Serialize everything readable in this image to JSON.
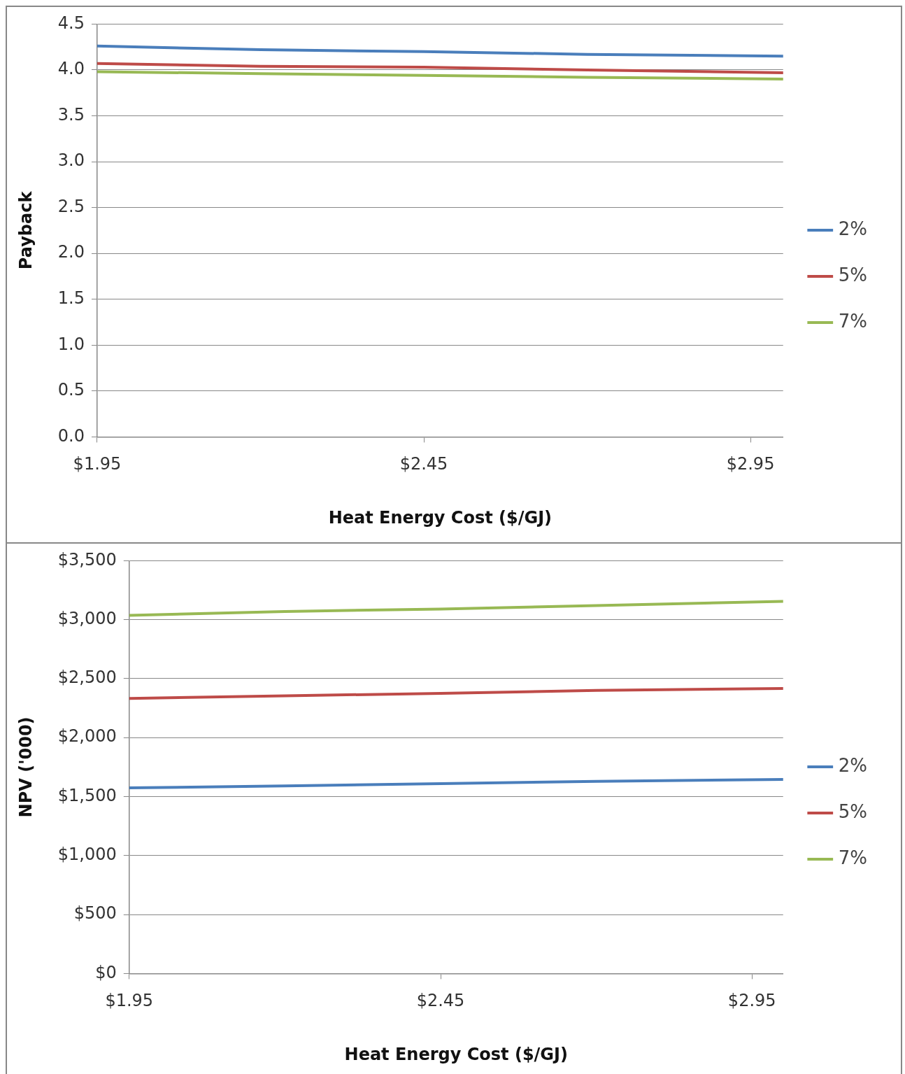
{
  "chart_data": [
    {
      "type": "line",
      "xlabel": "Heat Energy Cost ($/GJ)",
      "ylabel": "Payback",
      "x": [
        1.95,
        2.2,
        2.45,
        2.7,
        3.0
      ],
      "xlim": [
        1.95,
        3.0
      ],
      "xticks": [
        {
          "value": 1.95,
          "label": "$1.95"
        },
        {
          "value": 2.45,
          "label": "$2.45"
        },
        {
          "value": 2.95,
          "label": "$2.95"
        }
      ],
      "ylim": [
        0,
        4.5
      ],
      "yticks": [
        {
          "value": 0,
          "label": "0.0"
        },
        {
          "value": 0.5,
          "label": "0.5"
        },
        {
          "value": 1,
          "label": "1.0"
        },
        {
          "value": 1.5,
          "label": "1.5"
        },
        {
          "value": 2,
          "label": "2.0"
        },
        {
          "value": 2.5,
          "label": "2.5"
        },
        {
          "value": 3,
          "label": "3.0"
        },
        {
          "value": 3.5,
          "label": "3.5"
        },
        {
          "value": 4,
          "label": "4.0"
        },
        {
          "value": 4.5,
          "label": "4.5"
        }
      ],
      "grid": "y",
      "legend": "right",
      "marker": "none",
      "series": [
        {
          "name": "2%",
          "color": "#4a7ebb",
          "values": [
            4.26,
            4.22,
            4.2,
            4.17,
            4.15
          ]
        },
        {
          "name": "5%",
          "color": "#be4b48",
          "values": [
            4.07,
            4.04,
            4.03,
            4.0,
            3.97
          ]
        },
        {
          "name": "7%",
          "color": "#98b954",
          "values": [
            3.98,
            3.96,
            3.94,
            3.92,
            3.9
          ]
        }
      ]
    },
    {
      "type": "line",
      "xlabel": "Heat Energy Cost ($/GJ)",
      "ylabel": "NPV ('000)",
      "x": [
        1.95,
        2.2,
        2.45,
        2.7,
        3.0
      ],
      "xlim": [
        1.95,
        3.0
      ],
      "xticks": [
        {
          "value": 1.95,
          "label": "$1.95"
        },
        {
          "value": 2.45,
          "label": "$2.45"
        },
        {
          "value": 2.95,
          "label": "$2.95"
        }
      ],
      "ylim": [
        0,
        3500
      ],
      "yticks": [
        {
          "value": 0,
          "label": "$0"
        },
        {
          "value": 500,
          "label": "$500"
        },
        {
          "value": 1000,
          "label": "$1,000"
        },
        {
          "value": 1500,
          "label": "$1,500"
        },
        {
          "value": 2000,
          "label": "$2,000"
        },
        {
          "value": 2500,
          "label": "$2,500"
        },
        {
          "value": 3000,
          "label": "$3,000"
        },
        {
          "value": 3500,
          "label": "$3,500"
        }
      ],
      "grid": "y",
      "legend": "right",
      "marker": "none",
      "series": [
        {
          "name": "2%",
          "color": "#4a7ebb",
          "values": [
            1574,
            1590,
            1610,
            1630,
            1646
          ]
        },
        {
          "name": "5%",
          "color": "#be4b48",
          "values": [
            2332,
            2355,
            2375,
            2400,
            2417
          ]
        },
        {
          "name": "7%",
          "color": "#98b954",
          "values": [
            3037,
            3070,
            3090,
            3120,
            3155
          ]
        }
      ]
    }
  ]
}
